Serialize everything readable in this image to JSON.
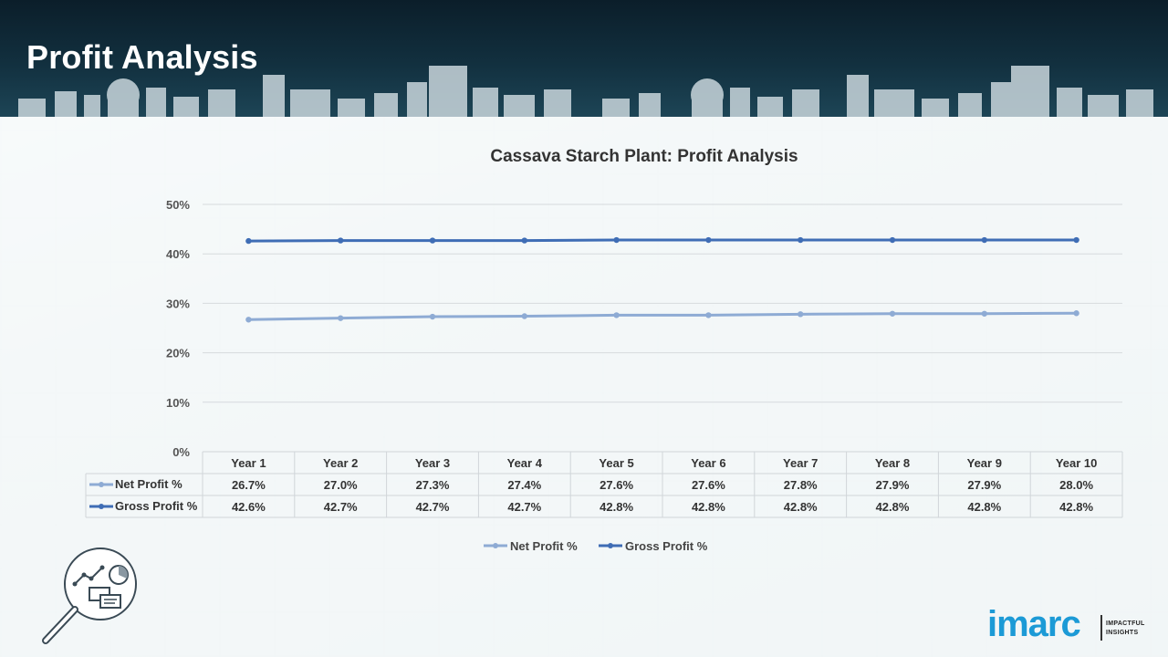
{
  "header": {
    "title": "Profit Analysis"
  },
  "logo": {
    "word": "imarc",
    "tagline_1": "IMPACTFUL",
    "tagline_2": "INSIGHTS"
  },
  "chart_data": {
    "type": "line",
    "title": "Cassava Starch Plant: Profit Analysis",
    "xlabel": "",
    "ylabel": "",
    "categories": [
      "Year 1",
      "Year 2",
      "Year 3",
      "Year 4",
      "Year 5",
      "Year 6",
      "Year 7",
      "Year 8",
      "Year 9",
      "Year 10"
    ],
    "series": [
      {
        "name": "Net Profit %",
        "color": "#8eabd4",
        "values": [
          26.7,
          27.0,
          27.3,
          27.4,
          27.6,
          27.6,
          27.8,
          27.9,
          27.9,
          28.0
        ],
        "labels": [
          "26.7%",
          "27.0%",
          "27.3%",
          "27.4%",
          "27.6%",
          "27.6%",
          "27.8%",
          "27.9%",
          "27.9%",
          "28.0%"
        ]
      },
      {
        "name": "Gross Profit %",
        "color": "#3f6db5",
        "values": [
          42.6,
          42.7,
          42.7,
          42.7,
          42.8,
          42.8,
          42.8,
          42.8,
          42.8,
          42.8
        ],
        "labels": [
          "42.6%",
          "42.7%",
          "42.7%",
          "42.7%",
          "42.8%",
          "42.8%",
          "42.8%",
          "42.8%",
          "42.8%",
          "42.8%"
        ]
      }
    ],
    "ylim": [
      0,
      50
    ],
    "yticks": [
      "0%",
      "10%",
      "20%",
      "30%",
      "40%",
      "50%"
    ],
    "grid": true,
    "legend": "bottom",
    "data_table": true
  }
}
